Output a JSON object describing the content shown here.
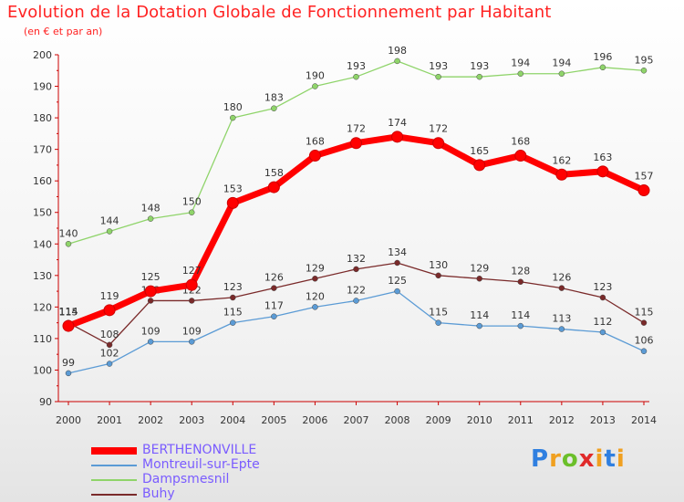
{
  "header": {
    "title": "Evolution de la Dotation Globale de Fonctionnement par Habitant",
    "subtitle": "(en € et par an)"
  },
  "brand": {
    "text": "Proxiti"
  },
  "colors": {
    "title": "#ff2222",
    "axis": "#cc0000",
    "grid_tick": "#cc0000",
    "legend_text": "#7a5cff"
  },
  "chart_data": {
    "type": "line",
    "title": "Evolution de la Dotation Globale de Fonctionnement par Habitant",
    "subtitle": "(en € et par an)",
    "x": [
      "2000",
      "2001",
      "2002",
      "2003",
      "2004",
      "2005",
      "2006",
      "2007",
      "2008",
      "2009",
      "2010",
      "2011",
      "2012",
      "2013",
      "2014"
    ],
    "ylim": [
      90,
      200
    ],
    "yticks": [
      90,
      100,
      110,
      120,
      130,
      140,
      150,
      160,
      170,
      180,
      190,
      200
    ],
    "grid": false,
    "legend_position": "bottom-left",
    "series": [
      {
        "name": "BERTHENONVILLE",
        "color": "#ff0000",
        "values": [
          114,
          119,
          125,
          127,
          153,
          158,
          168,
          172,
          174,
          172,
          165,
          168,
          162,
          163,
          157
        ]
      },
      {
        "name": "Montreuil-sur-Epte",
        "color": "#5b9bd5",
        "values": [
          99,
          102,
          109,
          109,
          115,
          117,
          120,
          122,
          125,
          115,
          114,
          114,
          113,
          112,
          106
        ]
      },
      {
        "name": "Dampsmesnil",
        "color": "#8fd46a",
        "values": [
          140,
          144,
          148,
          150,
          180,
          183,
          190,
          193,
          198,
          193,
          193,
          194,
          194,
          196,
          195
        ]
      },
      {
        "name": "Buhy",
        "color": "#7a2a2a",
        "values": [
          115,
          108,
          122,
          122,
          123,
          126,
          129,
          132,
          134,
          130,
          129,
          128,
          126,
          123,
          115
        ]
      }
    ]
  }
}
